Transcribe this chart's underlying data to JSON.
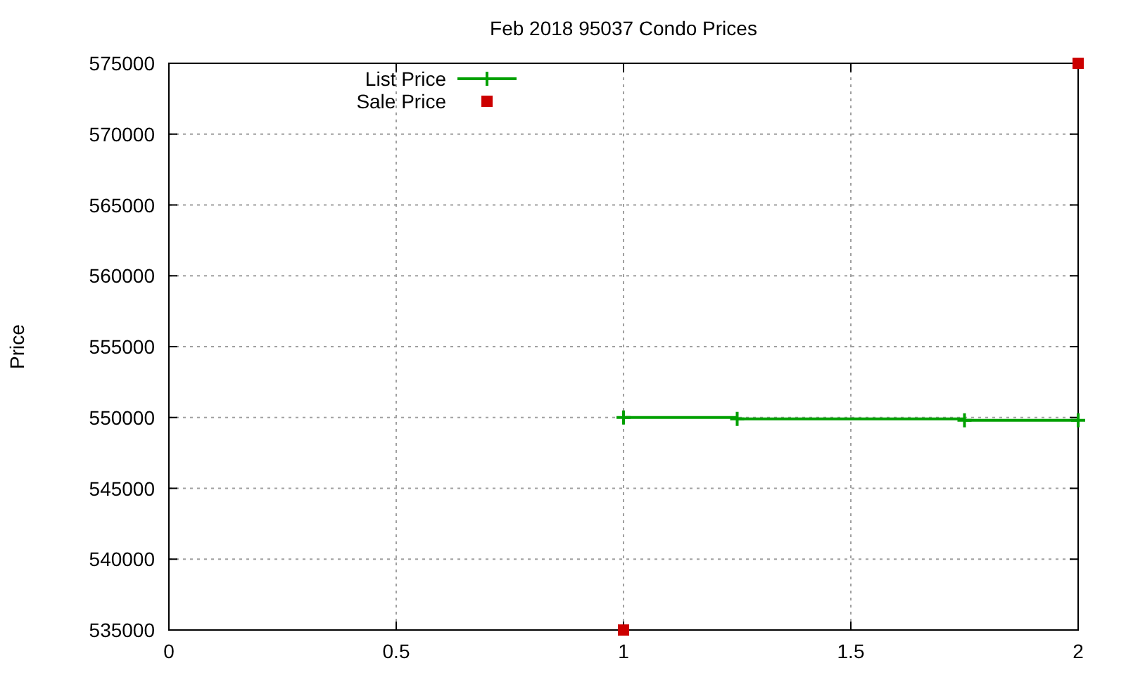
{
  "chart_data": {
    "type": "scatter",
    "title": "Feb 2018 95037 Condo Prices",
    "ylabel": "Price",
    "series": [
      {
        "name": "List Price",
        "type": "step",
        "color": "#00a000",
        "marker": "cross",
        "x": [
          1,
          1.25,
          1.75,
          2
        ],
        "values": [
          550000,
          549900,
          549800,
          549800
        ]
      },
      {
        "name": "Sale Price",
        "color": "#cc0000",
        "marker": "square",
        "x": [
          1,
          2
        ],
        "values": [
          535000,
          575000
        ]
      }
    ],
    "xlim": [
      0,
      2
    ],
    "xticks": [
      0,
      0.5,
      1,
      1.5,
      2
    ],
    "ylim": [
      535000,
      575000
    ],
    "yticks": [
      535000,
      540000,
      545000,
      550000,
      555000,
      560000,
      565000,
      570000,
      575000
    ],
    "grid": true,
    "legend": "top left"
  }
}
